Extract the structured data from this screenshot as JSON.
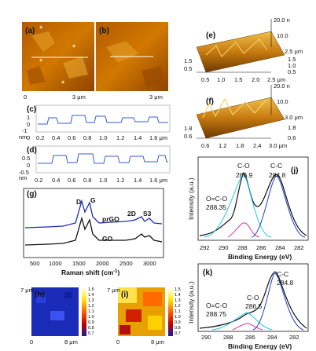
{
  "panels": {
    "a": {
      "label": "(a)",
      "scale": "0",
      "scale_end": "3 μm"
    },
    "b": {
      "label": "(b)",
      "scale_end": "3 μm"
    },
    "c": {
      "label": "(c)",
      "unit": "nm",
      "y_ticks": [
        "1",
        "0",
        "-1"
      ],
      "x_ticks": [
        "0",
        "0.2",
        "0.4",
        "0.6",
        "0.8",
        "1.0",
        "1.2",
        "1.4",
        "1.6 μm"
      ]
    },
    "d": {
      "label": "(d)",
      "unit": "nm",
      "y_ticks": [
        "0.5",
        "0",
        "-0.5"
      ],
      "x_ticks": [
        "0.2",
        "0.4",
        "0.6",
        "0.8",
        "1.0",
        "1.2",
        "1.4",
        "1.6 μm"
      ]
    },
    "e": {
      "label": "(e)",
      "z_ticks": [
        "20.0 n",
        "10.0"
      ],
      "depth_ticks": [
        "2.5 μm",
        "1.5",
        "1.0",
        "0.5"
      ],
      "left_ticks": [
        "1.5",
        "0.5"
      ],
      "x_ticks": [
        "0.5",
        "1.0",
        "1.5",
        "2.0",
        "2.5 μm"
      ]
    },
    "f": {
      "label": "(f)",
      "z_ticks": [
        "20.0 n",
        "10.0"
      ],
      "depth_ticks": [
        "3.0 μm",
        "1.8",
        "0.6"
      ],
      "left_ticks": [
        "1.8",
        "0.6"
      ],
      "x_ticks": [
        "0.6",
        "1.2",
        "1.8",
        "2.4",
        "3.0 μm"
      ]
    },
    "g": {
      "label": "(g)",
      "peaks": [
        "D",
        "G",
        "2D",
        "S3"
      ],
      "series": [
        "prGO",
        "GO"
      ],
      "xlabel": "Raman shift (cm",
      "x_ticks": [
        "500",
        "1000",
        "1500",
        "2000",
        "2500",
        "3000"
      ]
    },
    "h": {
      "label": "(h)",
      "y_top": "7 μm",
      "x_left": "0",
      "x_right": "8 μm",
      "scale": [
        "1.5",
        "1.4",
        "1.3",
        "1.2",
        "1.1",
        "1.0",
        "0.9",
        "0.8",
        "0.7"
      ]
    },
    "i": {
      "label": "(i)",
      "y_top": "7 μm",
      "x_left": "0",
      "x_right": "8 μm",
      "scale": [
        "1.5",
        "1.4",
        "1.3",
        "1.2",
        "1.1",
        "1.0",
        "0.9",
        "0.8",
        "0.7"
      ]
    },
    "j": {
      "label": "(j)",
      "peak_cc": "C-C",
      "peak_cc_val": "284.8",
      "peak_co": "C-O",
      "peak_co_val": "286.9",
      "peak_oco": "O=C-O",
      "peak_oco_val": "288.35",
      "ylabel": "Intensity (a.u.)",
      "xlabel": "Binding Energy (eV)",
      "x_ticks": [
        "292",
        "290",
        "288",
        "286",
        "284",
        "282"
      ]
    },
    "k": {
      "label": "(k)",
      "peak_cc": "C-C",
      "peak_cc_val": "284.8",
      "peak_co": "C-O",
      "peak_co_val": "286.5",
      "peak_oco": "O=C-O",
      "peak_oco_val": "288.75",
      "ylabel": "Intensity (a.u.)",
      "xlabel": "Binding Energy (eV)",
      "x_ticks": [
        "290",
        "288",
        "286",
        "284",
        "282"
      ]
    }
  },
  "colors": {
    "afm_dark": "#7a3d00",
    "afm_mid": "#c46a00",
    "afm_light": "#f2b233",
    "prgo": "#1f2fb0",
    "go": "#111111",
    "profile": "#3b5bd6",
    "fit_cyan": "#1ec8e6",
    "fit_magenta": "#d63aa8",
    "fit_blue": "#1f3fd0"
  }
}
